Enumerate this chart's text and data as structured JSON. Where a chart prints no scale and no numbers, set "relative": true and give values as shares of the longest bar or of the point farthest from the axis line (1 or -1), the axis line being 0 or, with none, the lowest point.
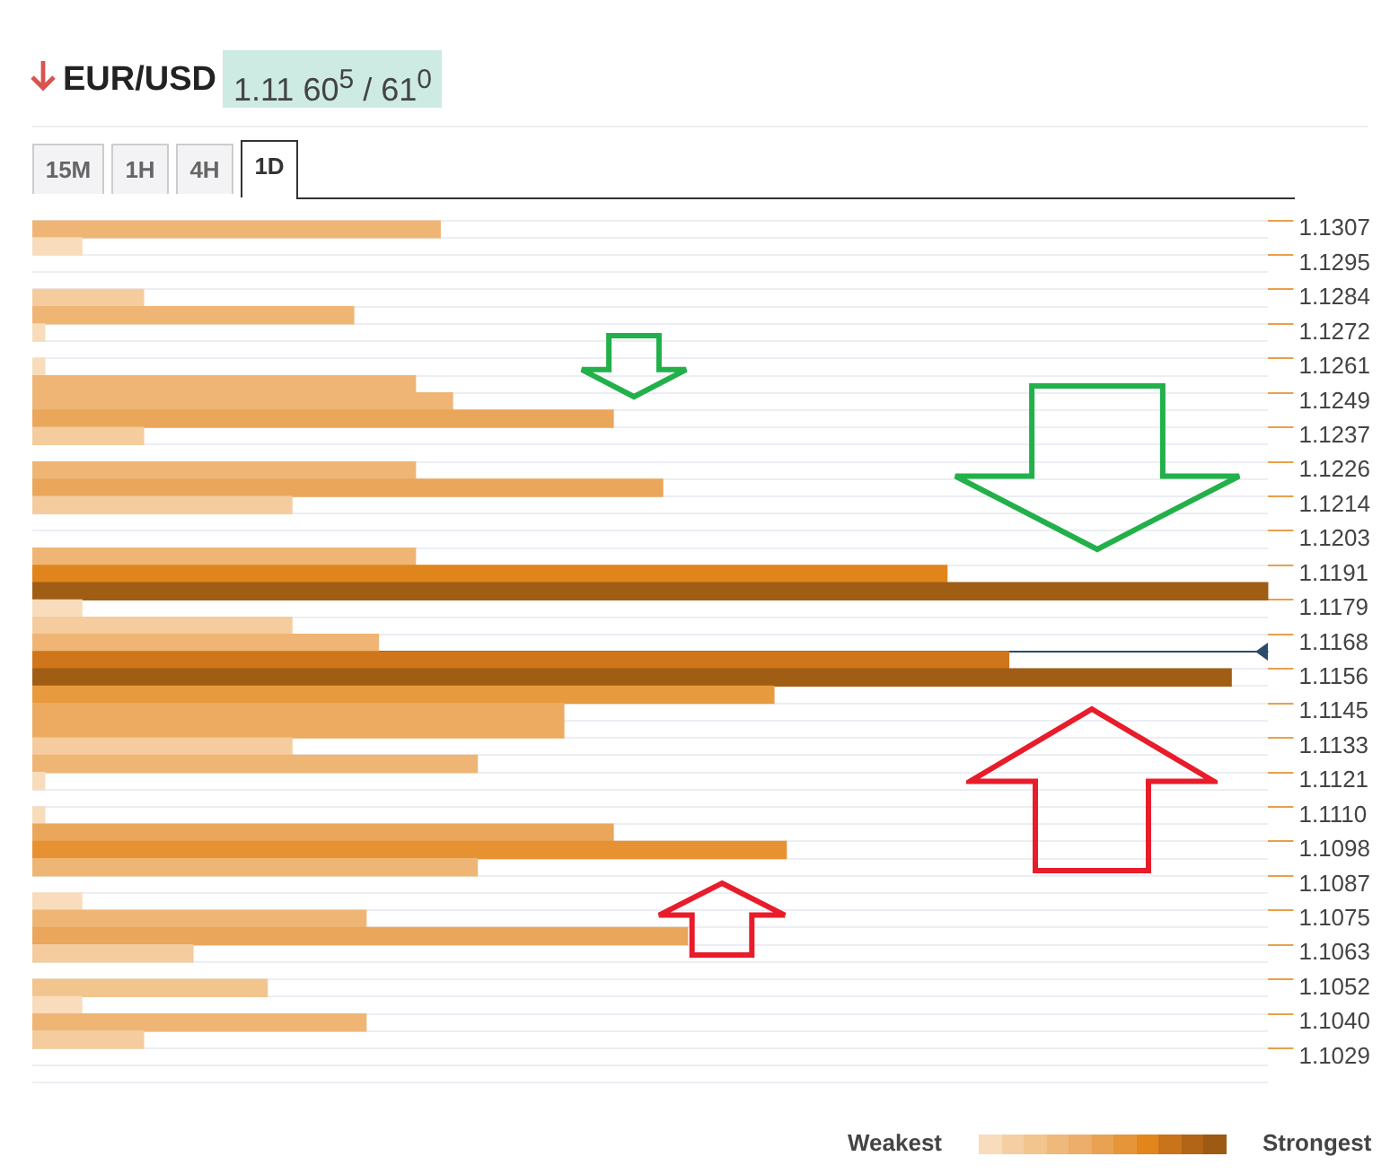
{
  "chart_data": {
    "type": "bar",
    "orientation": "horizontal",
    "relative": true,
    "title": "EUR/USD",
    "subtitle": "1.11 60$^{5}$ / 61$^{0}$",
    "categories": [
      "1.1307",
      null,
      "1.1295",
      null,
      "1.1284",
      null,
      "1.1272",
      null,
      "1.1261",
      null,
      "1.1249",
      null,
      "1.1237",
      null,
      "1.1226",
      null,
      "1.1214",
      null,
      "1.1203",
      null,
      "1.1191",
      null,
      "1.1179",
      null,
      "1.1168",
      null,
      "1.1156",
      null,
      "1.1145",
      null,
      "1.1133",
      null,
      "1.1121",
      null,
      "1.1110",
      null,
      "1.1098",
      null,
      "1.1087",
      null,
      "1.1075",
      null,
      "1.1063",
      null,
      "1.1052",
      null,
      "1.1040",
      null,
      "1.1029",
      null
    ],
    "values": [
      0.33,
      0.04,
      null,
      null,
      0.09,
      0.26,
      0.01,
      null,
      0.01,
      0.31,
      0.34,
      0.47,
      0.09,
      null,
      0.31,
      0.51,
      0.21,
      null,
      null,
      0.31,
      0.74,
      1,
      0.04,
      0.21,
      0.28,
      0.79,
      0.97,
      0.6,
      0.43,
      0.43,
      0.21,
      0.36,
      0.01,
      null,
      0.01,
      0.47,
      0.61,
      0.36,
      null,
      0.04,
      0.27,
      0.53,
      0.13,
      null,
      0.19,
      0.04,
      0.27,
      0.09,
      null,
      null
    ],
    "colors": [
      "#eeb574",
      "#f8dcbb",
      null,
      null,
      "#f4cc9e",
      "#eeb574",
      "#f8dcbb",
      null,
      "#f8dcbb",
      "#eeb574",
      "#eeb574",
      "#eaa65a",
      "#f4cc9e",
      null,
      "#eeb574",
      "#eaa65a",
      "#f4cc9e",
      null,
      null,
      "#eeb574",
      "#e0851b",
      "#a05e14",
      "#f8dcbb",
      "#f4cc9e",
      "#eeb574",
      "#d0761a",
      "#a05e14",
      "#e89a3e",
      "#ecab60",
      "#ecab60",
      "#f4cc9e",
      "#eeb574",
      "#f8dcbb",
      null,
      "#f8dcbb",
      "#eaa65a",
      "#e79232",
      "#eeb574",
      null,
      "#f8dcbb",
      "#eeb574",
      "#eaa65a",
      "#f4cc9e",
      null,
      "#f2c48e",
      "#f8dcbb",
      "#eeb574",
      "#f4cc9e",
      null,
      null
    ],
    "grid": true,
    "ref_lines": [
      {
        "axis": "y",
        "value": "1.1168",
        "color": "#2c4a6e"
      }
    ],
    "annotations": [
      "15M",
      "1H",
      "4H",
      "1D",
      "Weakest",
      "Strongest"
    ]
  }
}
